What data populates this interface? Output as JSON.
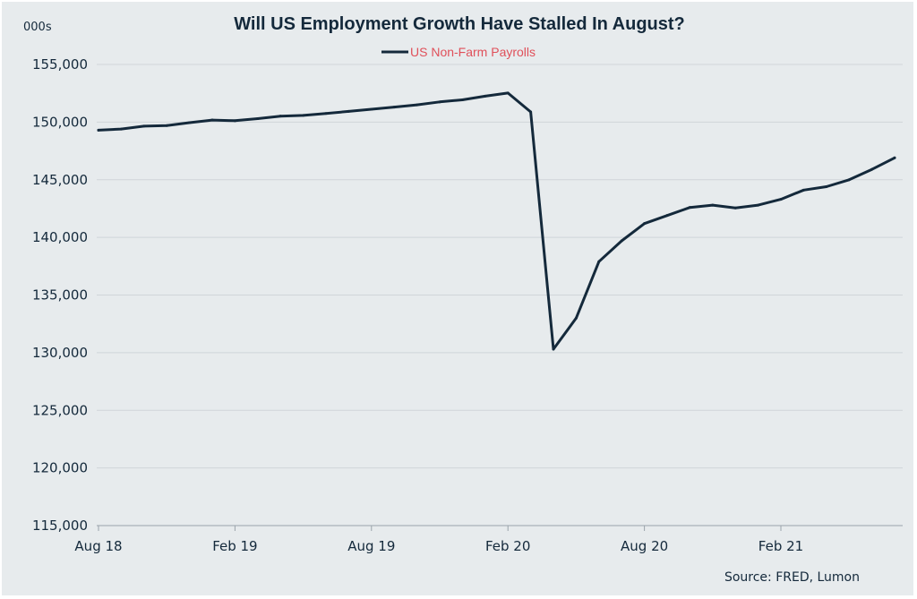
{
  "chart_data": {
    "type": "line",
    "title": "Will US Employment Growth Have Stalled In August?",
    "unit_label": "000s",
    "source": "Source: FRED, Lumon",
    "ylim": [
      115000,
      155000
    ],
    "y_ticks": [
      155000,
      150000,
      145000,
      140000,
      135000,
      130000,
      125000,
      120000,
      115000
    ],
    "y_tick_labels": [
      "155,000",
      "150,000",
      "145,000",
      "140,000",
      "135,000",
      "130,000",
      "125,000",
      "120,000",
      "115,000"
    ],
    "x_tick_labels": [
      "Aug 18",
      "Feb 19",
      "Aug 19",
      "Feb 20",
      "Aug 20",
      "Feb 21"
    ],
    "x_tick_index": [
      0,
      6,
      12,
      18,
      24,
      30
    ],
    "grid": true,
    "legend": {
      "position": "top-center"
    },
    "colors": {
      "series": "#14293b",
      "legend_text": "#e0505a",
      "grid": "#d0d5d9",
      "background": "#e7ebed"
    },
    "series": [
      {
        "name": "US Non-Farm Payrolls",
        "x": [
          "Aug 18",
          "Sep 18",
          "Oct 18",
          "Nov 18",
          "Dec 18",
          "Jan 19",
          "Feb 19",
          "Mar 19",
          "Apr 19",
          "May 19",
          "Jun 19",
          "Jul 19",
          "Aug 19",
          "Sep 19",
          "Oct 19",
          "Nov 19",
          "Dec 19",
          "Jan 20",
          "Feb 20",
          "Mar 20",
          "Apr 20",
          "May 20",
          "Jun 20",
          "Jul 20",
          "Aug 20",
          "Sep 20",
          "Oct 20",
          "Nov 20",
          "Dec 20",
          "Jan 21",
          "Feb 21",
          "Mar 21",
          "Apr 21",
          "May 21",
          "Jun 21",
          "Jul 21"
        ],
        "values": [
          149300,
          149400,
          149650,
          149700,
          149950,
          150180,
          150120,
          150300,
          150520,
          150580,
          150750,
          150930,
          151120,
          151300,
          151500,
          151750,
          151930,
          152250,
          152520,
          150880,
          130300,
          133000,
          137900,
          139700,
          141200,
          141900,
          142600,
          142800,
          142550,
          142800,
          143300,
          144100,
          144400,
          145000,
          145900,
          146900
        ]
      }
    ]
  }
}
